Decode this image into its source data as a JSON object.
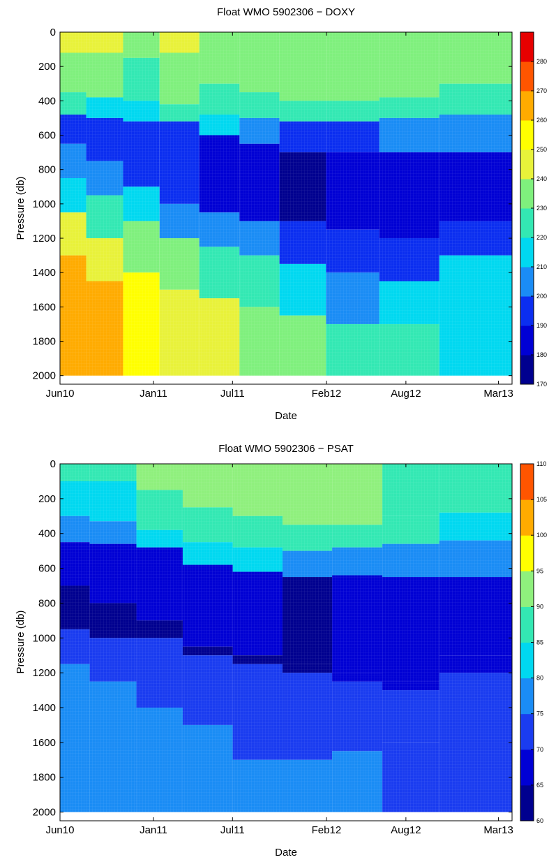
{
  "chart_data": [
    {
      "type": "heatmap",
      "title": "Float WMO 5902306 − DOXY",
      "xlabel": "Date",
      "ylabel": "Pressure (db)",
      "x_tick_labels": [
        "Jun10",
        "Jan11",
        "Jul11",
        "Feb12",
        "Aug12",
        "Mar13"
      ],
      "x_ticks": [
        "2010-06-01",
        "2011-01-01",
        "2011-07-01",
        "2012-02-01",
        "2012-08-01",
        "2013-03-01"
      ],
      "xlim": [
        "2010-06-01",
        "2013-04-01"
      ],
      "y_tick_labels": [
        "0",
        "200",
        "400",
        "600",
        "800",
        "1000",
        "1200",
        "1400",
        "1600",
        "1800",
        "2000"
      ],
      "y_ticks": [
        0,
        200,
        400,
        600,
        800,
        1000,
        1200,
        1400,
        1600,
        1800,
        2000
      ],
      "ylim": [
        2050,
        0
      ],
      "y_reversed": true,
      "colorbar": {
        "levels": [
          170,
          180,
          190,
          200,
          210,
          220,
          230,
          240,
          250,
          260,
          270,
          280
        ],
        "colors": [
          "#00008f",
          "#0000d4",
          "#0b2ef0",
          "#1a8cf5",
          "#00d8f0",
          "#33e8b3",
          "#7ff07d",
          "#e8f23a",
          "#ffff00",
          "#ffab00",
          "#ff5500",
          "#e60000"
        ]
      },
      "profiles": [
        {
          "date": "2010-06-15",
          "layers": [
            [
              0,
              245
            ],
            [
              120,
              235
            ],
            [
              350,
              220
            ],
            [
              480,
              190
            ],
            [
              650,
              200
            ],
            [
              850,
              215
            ],
            [
              1050,
              240
            ],
            [
              1300,
              262
            ],
            [
              2000,
              262
            ]
          ]
        },
        {
          "date": "2010-09-15",
          "layers": [
            [
              0,
              242
            ],
            [
              120,
              230
            ],
            [
              380,
              215
            ],
            [
              500,
              190
            ],
            [
              750,
              205
            ],
            [
              950,
              225
            ],
            [
              1200,
              245
            ],
            [
              1450,
              262
            ],
            [
              2000,
              262
            ]
          ]
        },
        {
          "date": "2010-12-01",
          "layers": [
            [
              0,
              238
            ],
            [
              150,
              228
            ],
            [
              400,
              210
            ],
            [
              520,
              195
            ],
            [
              900,
              215
            ],
            [
              1100,
              235
            ],
            [
              1400,
              255
            ],
            [
              2000,
              255
            ]
          ]
        },
        {
          "date": "2011-03-01",
          "layers": [
            [
              0,
              245
            ],
            [
              120,
              235
            ],
            [
              420,
              220
            ],
            [
              520,
              190
            ],
            [
              1000,
              205
            ],
            [
              1200,
              230
            ],
            [
              1500,
              248
            ],
            [
              2000,
              252
            ]
          ]
        },
        {
          "date": "2011-06-01",
          "layers": [
            [
              0,
              238
            ],
            [
              300,
              228
            ],
            [
              480,
              215
            ],
            [
              600,
              185
            ],
            [
              1050,
              205
            ],
            [
              1250,
              222
            ],
            [
              1550,
              242
            ],
            [
              2000,
              252
            ]
          ]
        },
        {
          "date": "2011-09-01",
          "layers": [
            [
              0,
              238
            ],
            [
              350,
              228
            ],
            [
              500,
              200
            ],
            [
              650,
              185
            ],
            [
              1100,
              200
            ],
            [
              1300,
              220
            ],
            [
              1600,
              238
            ],
            [
              2000,
              245
            ]
          ]
        },
        {
          "date": "2011-12-01",
          "layers": [
            [
              0,
              235
            ],
            [
              400,
              225
            ],
            [
              520,
              195
            ],
            [
              700,
              175
            ],
            [
              1100,
              195
            ],
            [
              1350,
              215
            ],
            [
              1650,
              232
            ],
            [
              2000,
              240
            ]
          ]
        },
        {
          "date": "2012-04-01",
          "layers": [
            [
              0,
              235
            ],
            [
              400,
              225
            ],
            [
              520,
              195
            ],
            [
              700,
              180
            ],
            [
              1150,
              192
            ],
            [
              1400,
              208
            ],
            [
              1700,
              222
            ],
            [
              2000,
              230
            ]
          ]
        },
        {
          "date": "2012-08-01",
          "layers": [
            [
              0,
              230
            ],
            [
              380,
              222
            ],
            [
              500,
              200
            ],
            [
              700,
              180
            ],
            [
              1200,
              195
            ],
            [
              1450,
              210
            ],
            [
              1700,
              228
            ],
            [
              2000,
              232
            ]
          ]
        },
        {
          "date": "2013-01-01",
          "layers": [
            [
              0,
              232
            ],
            [
              300,
              222
            ],
            [
              480,
              200
            ],
            [
              700,
              185
            ],
            [
              1100,
              195
            ],
            [
              1300,
              210
            ]
          ]
        }
      ]
    },
    {
      "type": "heatmap",
      "title": "Float WMO 5902306 − PSAT",
      "xlabel": "Date",
      "ylabel": "Pressure (db)",
      "x_tick_labels": [
        "Jun10",
        "Jan11",
        "Jul11",
        "Feb12",
        "Aug12",
        "Mar13"
      ],
      "x_ticks": [
        "2010-06-01",
        "2011-01-01",
        "2011-07-01",
        "2012-02-01",
        "2012-08-01",
        "2013-03-01"
      ],
      "xlim": [
        "2010-06-01",
        "2013-04-01"
      ],
      "y_tick_labels": [
        "0",
        "200",
        "400",
        "600",
        "800",
        "1000",
        "1200",
        "1400",
        "1600",
        "1800",
        "2000"
      ],
      "y_ticks": [
        0,
        200,
        400,
        600,
        800,
        1000,
        1200,
        1400,
        1600,
        1800,
        2000
      ],
      "ylim": [
        2050,
        0
      ],
      "y_reversed": true,
      "colorbar": {
        "levels": [
          60,
          65,
          70,
          75,
          80,
          85,
          90,
          95,
          100,
          105,
          110
        ],
        "colors": [
          "#00008f",
          "#0000d4",
          "#1a3cf0",
          "#1a8cf5",
          "#00d8f0",
          "#33e8b3",
          "#8ff07d",
          "#ffff00",
          "#ffab00",
          "#ff5500"
        ]
      },
      "profiles": [
        {
          "date": "2010-06-15",
          "layers": [
            [
              0,
              88
            ],
            [
              100,
              84
            ],
            [
              300,
              78
            ],
            [
              450,
              68
            ],
            [
              700,
              63
            ],
            [
              950,
              72
            ],
            [
              1150,
              78
            ],
            [
              2000,
              80
            ]
          ]
        },
        {
          "date": "2010-10-01",
          "layers": [
            [
              0,
              88
            ],
            [
              100,
              84
            ],
            [
              330,
              78
            ],
            [
              460,
              68
            ],
            [
              800,
              63
            ],
            [
              1000,
              72
            ],
            [
              1250,
              78
            ],
            [
              2000,
              80
            ]
          ]
        },
        {
          "date": "2011-01-15",
          "layers": [
            [
              0,
              90
            ],
            [
              150,
              85
            ],
            [
              380,
              80
            ],
            [
              480,
              68
            ],
            [
              900,
              64
            ],
            [
              1000,
              72
            ],
            [
              1400,
              77
            ],
            [
              2000,
              78
            ]
          ]
        },
        {
          "date": "2011-05-01",
          "layers": [
            [
              0,
              90
            ],
            [
              250,
              86
            ],
            [
              450,
              80
            ],
            [
              580,
              68
            ],
            [
              1050,
              64
            ],
            [
              1100,
              72
            ],
            [
              1500,
              76
            ],
            [
              2000,
              77
            ]
          ]
        },
        {
          "date": "2011-09-01",
          "layers": [
            [
              0,
              90
            ],
            [
              300,
              86
            ],
            [
              480,
              80
            ],
            [
              620,
              66
            ],
            [
              1100,
              64
            ],
            [
              1150,
              72
            ],
            [
              1700,
              76
            ],
            [
              2000,
              77
            ]
          ]
        },
        {
          "date": "2011-12-15",
          "layers": [
            [
              0,
              90
            ],
            [
              350,
              85
            ],
            [
              500,
              78
            ],
            [
              650,
              64
            ],
            [
              1150,
              64
            ],
            [
              1200,
              72
            ],
            [
              1700,
              75
            ],
            [
              2000,
              76
            ]
          ]
        },
        {
          "date": "2012-04-15",
          "layers": [
            [
              0,
              90
            ],
            [
              350,
              85
            ],
            [
              480,
              78
            ],
            [
              640,
              66
            ],
            [
              1200,
              66
            ],
            [
              1250,
              72
            ],
            [
              1650,
              75
            ],
            [
              2000,
              76
            ]
          ]
        },
        {
          "date": "2012-08-01",
          "layers": [
            [
              0,
              88
            ],
            [
              300,
              85
            ],
            [
              460,
              78
            ],
            [
              650,
              66
            ],
            [
              1250,
              67
            ],
            [
              1300,
              72
            ],
            [
              1600,
              74
            ],
            [
              2000,
              75
            ]
          ]
        },
        {
          "date": "2013-01-01",
          "layers": [
            [
              0,
              88
            ],
            [
              280,
              84
            ],
            [
              440,
              78
            ],
            [
              650,
              67
            ],
            [
              1100,
              67
            ],
            [
              1200,
              72
            ]
          ]
        }
      ]
    }
  ]
}
